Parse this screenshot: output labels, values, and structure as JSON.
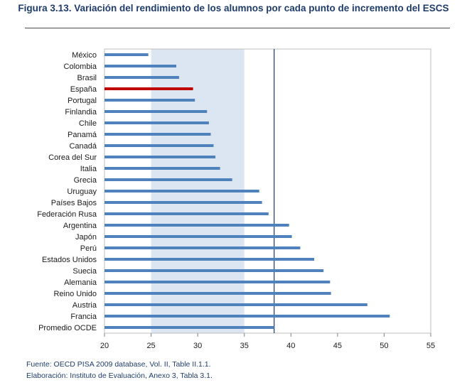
{
  "figure_title": "Figura 3.13. Variación del rendimiento de los alumnos por cada punto de incremento del ESCS",
  "colors": {
    "bar": "#4f81bd",
    "highlight": "#c00000",
    "band": "#dce6f2",
    "reference_line": "#1f3864",
    "title": "#1f3d6b"
  },
  "chart_data": {
    "type": "bar",
    "orientation": "horizontal",
    "title": "Variación del rendimiento de los alumnos por cada punto de incremento del ESCS",
    "xlabel": "",
    "ylabel": "",
    "xlim": [
      20,
      55
    ],
    "xticks": [
      20,
      25,
      30,
      35,
      40,
      45,
      50,
      55
    ],
    "shaded_range": [
      25,
      35
    ],
    "reference_value": 38.2,
    "reference_label": "Promedio OCDE",
    "highlight": "España",
    "categories": [
      "México",
      "Colombia",
      "Brasil",
      "España",
      "Portugal",
      "Finlandia",
      "Chile",
      "Panamá",
      "Canadá",
      "Corea del Sur",
      "Italia",
      "Grecia",
      "Uruguay",
      "Países Bajos",
      "Federación Rusa",
      "Argentina",
      "Japón",
      "Perú",
      "Estados Unidos",
      "Suecia",
      "Alemania",
      "Reino Unido",
      "Austria",
      "Francia",
      "Promedio OCDE"
    ],
    "values": [
      24.7,
      27.7,
      28.0,
      29.5,
      29.7,
      31.0,
      31.2,
      31.4,
      31.7,
      31.9,
      32.4,
      33.7,
      36.6,
      36.9,
      37.6,
      39.8,
      40.1,
      41.0,
      42.5,
      43.5,
      44.2,
      44.3,
      48.2,
      50.6,
      38.2
    ]
  },
  "notes": {
    "source": "Fuente: OECD PISA 2009 database, Vol. II, Table II.1.1.",
    "elaboration": "Elaboración: Instituto de Evaluación, Anexo 3, Tabla 3.1."
  }
}
